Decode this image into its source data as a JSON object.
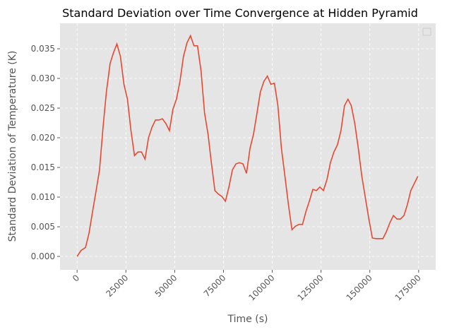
{
  "chart_data": {
    "type": "line",
    "title": "Standard Deviation over Time Convergence at Hidden Pyramid",
    "xlabel": "Time (s)",
    "ylabel": "Standard Deviation of Temperature (K)",
    "x": [
      0,
      2000,
      4300,
      6100,
      7900,
      9700,
      11500,
      13300,
      15000,
      16900,
      18600,
      20400,
      22200,
      24000,
      25800,
      27600,
      29400,
      31200,
      33000,
      34800,
      36600,
      38400,
      40200,
      42000,
      43700,
      45500,
      47300,
      49100,
      50900,
      52700,
      54500,
      56300,
      58100,
      59900,
      61700,
      63500,
      65300,
      67100,
      68800,
      70600,
      72400,
      74200,
      76000,
      77800,
      79600,
      81400,
      83200,
      85000,
      86800,
      88600,
      90400,
      92200,
      93900,
      95700,
      97500,
      99300,
      101100,
      102900,
      104700,
      106500,
      108300,
      110100,
      111900,
      113700,
      115500,
      117200,
      119000,
      120800,
      122600,
      124400,
      126200,
      128000,
      129800,
      131600,
      133400,
      135200,
      137000,
      138800,
      140500,
      142300,
      144100,
      145900,
      147700,
      149500,
      151300,
      153100,
      154900,
      156700,
      158500,
      160300,
      162100,
      163900,
      165700,
      167500,
      169200,
      171000,
      172800,
      174600
    ],
    "series": [
      {
        "color": "#e24a33",
        "values": [
          0.0,
          0.001,
          0.0015,
          0.0039,
          0.0075,
          0.011,
          0.0146,
          0.0218,
          0.0277,
          0.0325,
          0.0343,
          0.0358,
          0.0337,
          0.029,
          0.0265,
          0.0212,
          0.017,
          0.0176,
          0.0176,
          0.0164,
          0.02,
          0.0218,
          0.023,
          0.023,
          0.0232,
          0.0224,
          0.0212,
          0.0248,
          0.0265,
          0.0295,
          0.0337,
          0.036,
          0.0372,
          0.0355,
          0.0355,
          0.0313,
          0.0242,
          0.0206,
          0.0158,
          0.0111,
          0.0105,
          0.0101,
          0.0093,
          0.0117,
          0.0146,
          0.0156,
          0.0158,
          0.0156,
          0.014,
          0.0182,
          0.0206,
          0.0242,
          0.0277,
          0.0295,
          0.0304,
          0.029,
          0.0292,
          0.0254,
          0.0182,
          0.0135,
          0.0087,
          0.0045,
          0.0051,
          0.0054,
          0.0054,
          0.0075,
          0.0093,
          0.0113,
          0.0111,
          0.0117,
          0.0111,
          0.0129,
          0.0158,
          0.0176,
          0.0188,
          0.0212,
          0.0254,
          0.0265,
          0.0254,
          0.0224,
          0.0182,
          0.0135,
          0.0099,
          0.0063,
          0.0031,
          0.003,
          0.003,
          0.003,
          0.0042,
          0.0057,
          0.0069,
          0.0063,
          0.0063,
          0.0069,
          0.0087,
          0.0111,
          0.0123,
          0.0135
        ]
      }
    ],
    "xlim": [
      -8750,
      183750
    ],
    "ylim": [
      -0.00226,
      0.03929
    ],
    "xticks": [
      0,
      25000,
      50000,
      75000,
      100000,
      125000,
      150000,
      175000
    ],
    "yticks": [
      {
        "value": 0,
        "label": "0.000"
      },
      {
        "value": 0.005,
        "label": "0.005"
      },
      {
        "value": 0.01,
        "label": "0.010"
      },
      {
        "value": 0.015,
        "label": "0.015"
      },
      {
        "value": 0.02,
        "label": "0.020"
      },
      {
        "value": 0.025,
        "label": "0.025"
      },
      {
        "value": 0.03,
        "label": "0.030"
      },
      {
        "value": 0.035,
        "label": "0.035"
      }
    ],
    "grid": true
  }
}
